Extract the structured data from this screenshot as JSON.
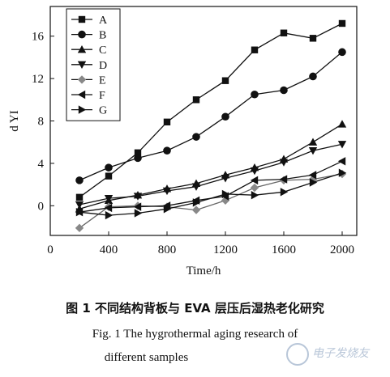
{
  "chart_data": {
    "type": "line",
    "title": "",
    "xlabel": "Time/h",
    "ylabel": "d YI",
    "xlim": [
      0,
      2100
    ],
    "ylim": [
      -2.8,
      18.8
    ],
    "xticks": [
      0,
      400,
      800,
      1200,
      1600,
      2000
    ],
    "yticks": [
      0,
      4,
      8,
      12,
      16
    ],
    "grid": false,
    "legend": "top-left",
    "x": [
      200,
      400,
      600,
      800,
      1000,
      1200,
      1400,
      1600,
      1800,
      2000
    ],
    "series": [
      {
        "name": "A",
        "marker": "square",
        "fill": "#111111",
        "values": [
          0.8,
          2.8,
          5.0,
          7.9,
          10.0,
          11.8,
          14.7,
          16.3,
          15.8,
          17.2
        ]
      },
      {
        "name": "B",
        "marker": "circle",
        "fill": "#111111",
        "values": [
          2.4,
          3.6,
          4.5,
          5.2,
          6.5,
          8.4,
          10.5,
          10.9,
          12.2,
          14.5
        ]
      },
      {
        "name": "C",
        "marker": "triangle-up",
        "fill": "#111111",
        "values": [
          -0.3,
          0.5,
          1.0,
          1.6,
          2.1,
          2.9,
          3.6,
          4.4,
          6.0,
          7.7
        ]
      },
      {
        "name": "D",
        "marker": "triangle-down",
        "fill": "#111111",
        "values": [
          0.1,
          0.7,
          0.9,
          1.4,
          1.8,
          2.6,
          3.3,
          4.1,
          5.2,
          5.8
        ]
      },
      {
        "name": "E",
        "marker": "diamond",
        "fill": "#888888",
        "values": [
          -2.1,
          -0.1,
          0.0,
          -0.1,
          -0.4,
          0.5,
          1.7,
          2.4,
          2.5,
          3.0
        ]
      },
      {
        "name": "F",
        "marker": "triangle-left",
        "fill": "#111111",
        "values": [
          -0.6,
          -0.2,
          -0.1,
          0.0,
          0.5,
          0.9,
          2.4,
          2.5,
          2.9,
          4.2
        ]
      },
      {
        "name": "G",
        "marker": "triangle-right",
        "fill": "#111111",
        "values": [
          -0.6,
          -0.9,
          -0.7,
          -0.3,
          0.3,
          1.1,
          1.0,
          1.3,
          2.2,
          3.1
        ]
      }
    ]
  },
  "caption": {
    "cn": "图 1   不同结构背板与 EVA 层压后湿热老化研究",
    "en_line1": "Fig. 1    The hygrothermal aging research of",
    "en_line2": "different samples"
  },
  "watermark": {
    "text": "电子发烧友"
  }
}
